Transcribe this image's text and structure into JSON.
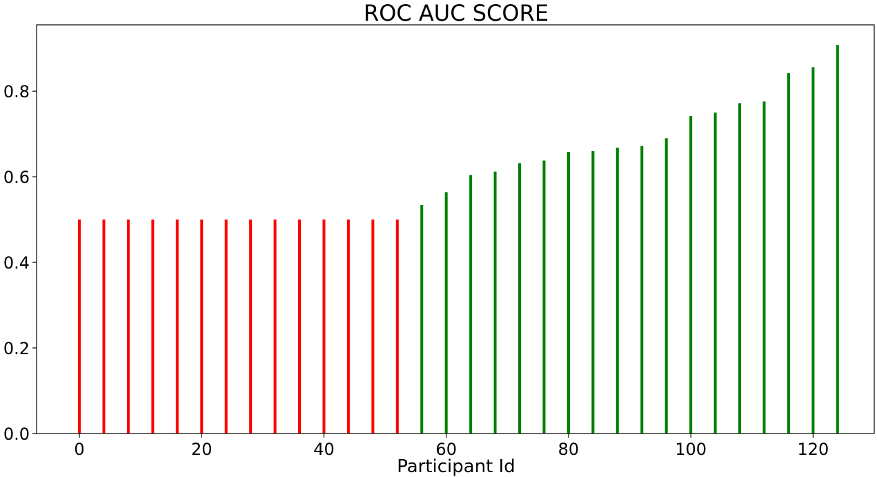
{
  "chart_data": {
    "type": "bar",
    "title": "ROC AUC SCORE",
    "xlabel": "Participant Id",
    "ylabel": "",
    "xlim": [
      -7,
      130
    ],
    "ylim": [
      0,
      0.955
    ],
    "xticks": [
      0,
      20,
      40,
      60,
      80,
      100,
      120
    ],
    "yticks": [
      0.0,
      0.2,
      0.4,
      0.6,
      0.8
    ],
    "grid": false,
    "legend": "none",
    "colors": {
      "low": "#ff0000",
      "high": "#008000",
      "axis": "#000000"
    },
    "bars": [
      {
        "x": 0,
        "value": 0.5,
        "color": "#ff0000"
      },
      {
        "x": 4,
        "value": 0.5,
        "color": "#ff0000"
      },
      {
        "x": 8,
        "value": 0.5,
        "color": "#ff0000"
      },
      {
        "x": 12,
        "value": 0.5,
        "color": "#ff0000"
      },
      {
        "x": 16,
        "value": 0.5,
        "color": "#ff0000"
      },
      {
        "x": 20,
        "value": 0.5,
        "color": "#ff0000"
      },
      {
        "x": 24,
        "value": 0.5,
        "color": "#ff0000"
      },
      {
        "x": 28,
        "value": 0.5,
        "color": "#ff0000"
      },
      {
        "x": 32,
        "value": 0.5,
        "color": "#ff0000"
      },
      {
        "x": 36,
        "value": 0.5,
        "color": "#ff0000"
      },
      {
        "x": 40,
        "value": 0.5,
        "color": "#ff0000"
      },
      {
        "x": 44,
        "value": 0.5,
        "color": "#ff0000"
      },
      {
        "x": 48,
        "value": 0.5,
        "color": "#ff0000"
      },
      {
        "x": 52,
        "value": 0.5,
        "color": "#ff0000"
      },
      {
        "x": 56,
        "value": 0.534,
        "color": "#008000"
      },
      {
        "x": 60,
        "value": 0.564,
        "color": "#008000"
      },
      {
        "x": 64,
        "value": 0.604,
        "color": "#008000"
      },
      {
        "x": 68,
        "value": 0.612,
        "color": "#008000"
      },
      {
        "x": 72,
        "value": 0.632,
        "color": "#008000"
      },
      {
        "x": 76,
        "value": 0.638,
        "color": "#008000"
      },
      {
        "x": 80,
        "value": 0.658,
        "color": "#008000"
      },
      {
        "x": 84,
        "value": 0.66,
        "color": "#008000"
      },
      {
        "x": 88,
        "value": 0.668,
        "color": "#008000"
      },
      {
        "x": 92,
        "value": 0.672,
        "color": "#008000"
      },
      {
        "x": 96,
        "value": 0.69,
        "color": "#008000"
      },
      {
        "x": 100,
        "value": 0.742,
        "color": "#008000"
      },
      {
        "x": 104,
        "value": 0.75,
        "color": "#008000"
      },
      {
        "x": 108,
        "value": 0.772,
        "color": "#008000"
      },
      {
        "x": 112,
        "value": 0.776,
        "color": "#008000"
      },
      {
        "x": 116,
        "value": 0.842,
        "color": "#008000"
      },
      {
        "x": 120,
        "value": 0.856,
        "color": "#008000"
      },
      {
        "x": 124,
        "value": 0.908,
        "color": "#008000"
      }
    ]
  }
}
